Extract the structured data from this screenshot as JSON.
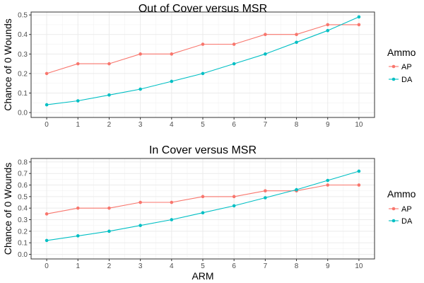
{
  "chart_data": [
    {
      "type": "line",
      "title": "Out of Cover versus MSR",
      "xlabel": "",
      "ylabel": "Chance of 0 Wounds",
      "x": [
        0,
        1,
        2,
        3,
        4,
        5,
        6,
        7,
        8,
        9,
        10
      ],
      "xlim": [
        -0.5,
        10.5
      ],
      "ylim": [
        -0.025,
        0.515
      ],
      "yticks": [
        0.0,
        0.1,
        0.2,
        0.3,
        0.4,
        0.5
      ],
      "ytick_labels": [
        "0.0",
        "0.1",
        "0.2",
        "0.3",
        "0.4",
        "0.5"
      ],
      "grid": true,
      "legend": {
        "title": "Ammo",
        "position": "right"
      },
      "series": [
        {
          "name": "AP",
          "color": "#F8766D",
          "values": [
            0.2,
            0.25,
            0.25,
            0.3,
            0.3,
            0.35,
            0.35,
            0.4,
            0.4,
            0.45,
            0.45
          ]
        },
        {
          "name": "DA",
          "color": "#00BFC4",
          "values": [
            0.04,
            0.06,
            0.09,
            0.12,
            0.16,
            0.2,
            0.25,
            0.3,
            0.36,
            0.42,
            0.49
          ]
        }
      ]
    },
    {
      "type": "line",
      "title": "In Cover versus MSR",
      "xlabel": "ARM",
      "ylabel": "Chance of 0 Wounds",
      "x": [
        0,
        1,
        2,
        3,
        4,
        5,
        6,
        7,
        8,
        9,
        10
      ],
      "xlim": [
        -0.5,
        10.5
      ],
      "ylim": [
        -0.04,
        0.83
      ],
      "yticks": [
        0.0,
        0.1,
        0.2,
        0.3,
        0.4,
        0.5,
        0.6,
        0.7,
        0.8
      ],
      "ytick_labels": [
        "0.0",
        "0.1",
        "0.2",
        "0.3",
        "0.4",
        "0.5",
        "0.6",
        "0.7",
        "0.8"
      ],
      "grid": true,
      "legend": {
        "title": "Ammo",
        "position": "right"
      },
      "series": [
        {
          "name": "AP",
          "color": "#F8766D",
          "values": [
            0.35,
            0.4,
            0.4,
            0.45,
            0.45,
            0.5,
            0.5,
            0.55,
            0.55,
            0.6,
            0.6
          ]
        },
        {
          "name": "DA",
          "color": "#00BFC4",
          "values": [
            0.12,
            0.16,
            0.2,
            0.25,
            0.3,
            0.36,
            0.42,
            0.49,
            0.56,
            0.64,
            0.72
          ]
        }
      ]
    }
  ]
}
